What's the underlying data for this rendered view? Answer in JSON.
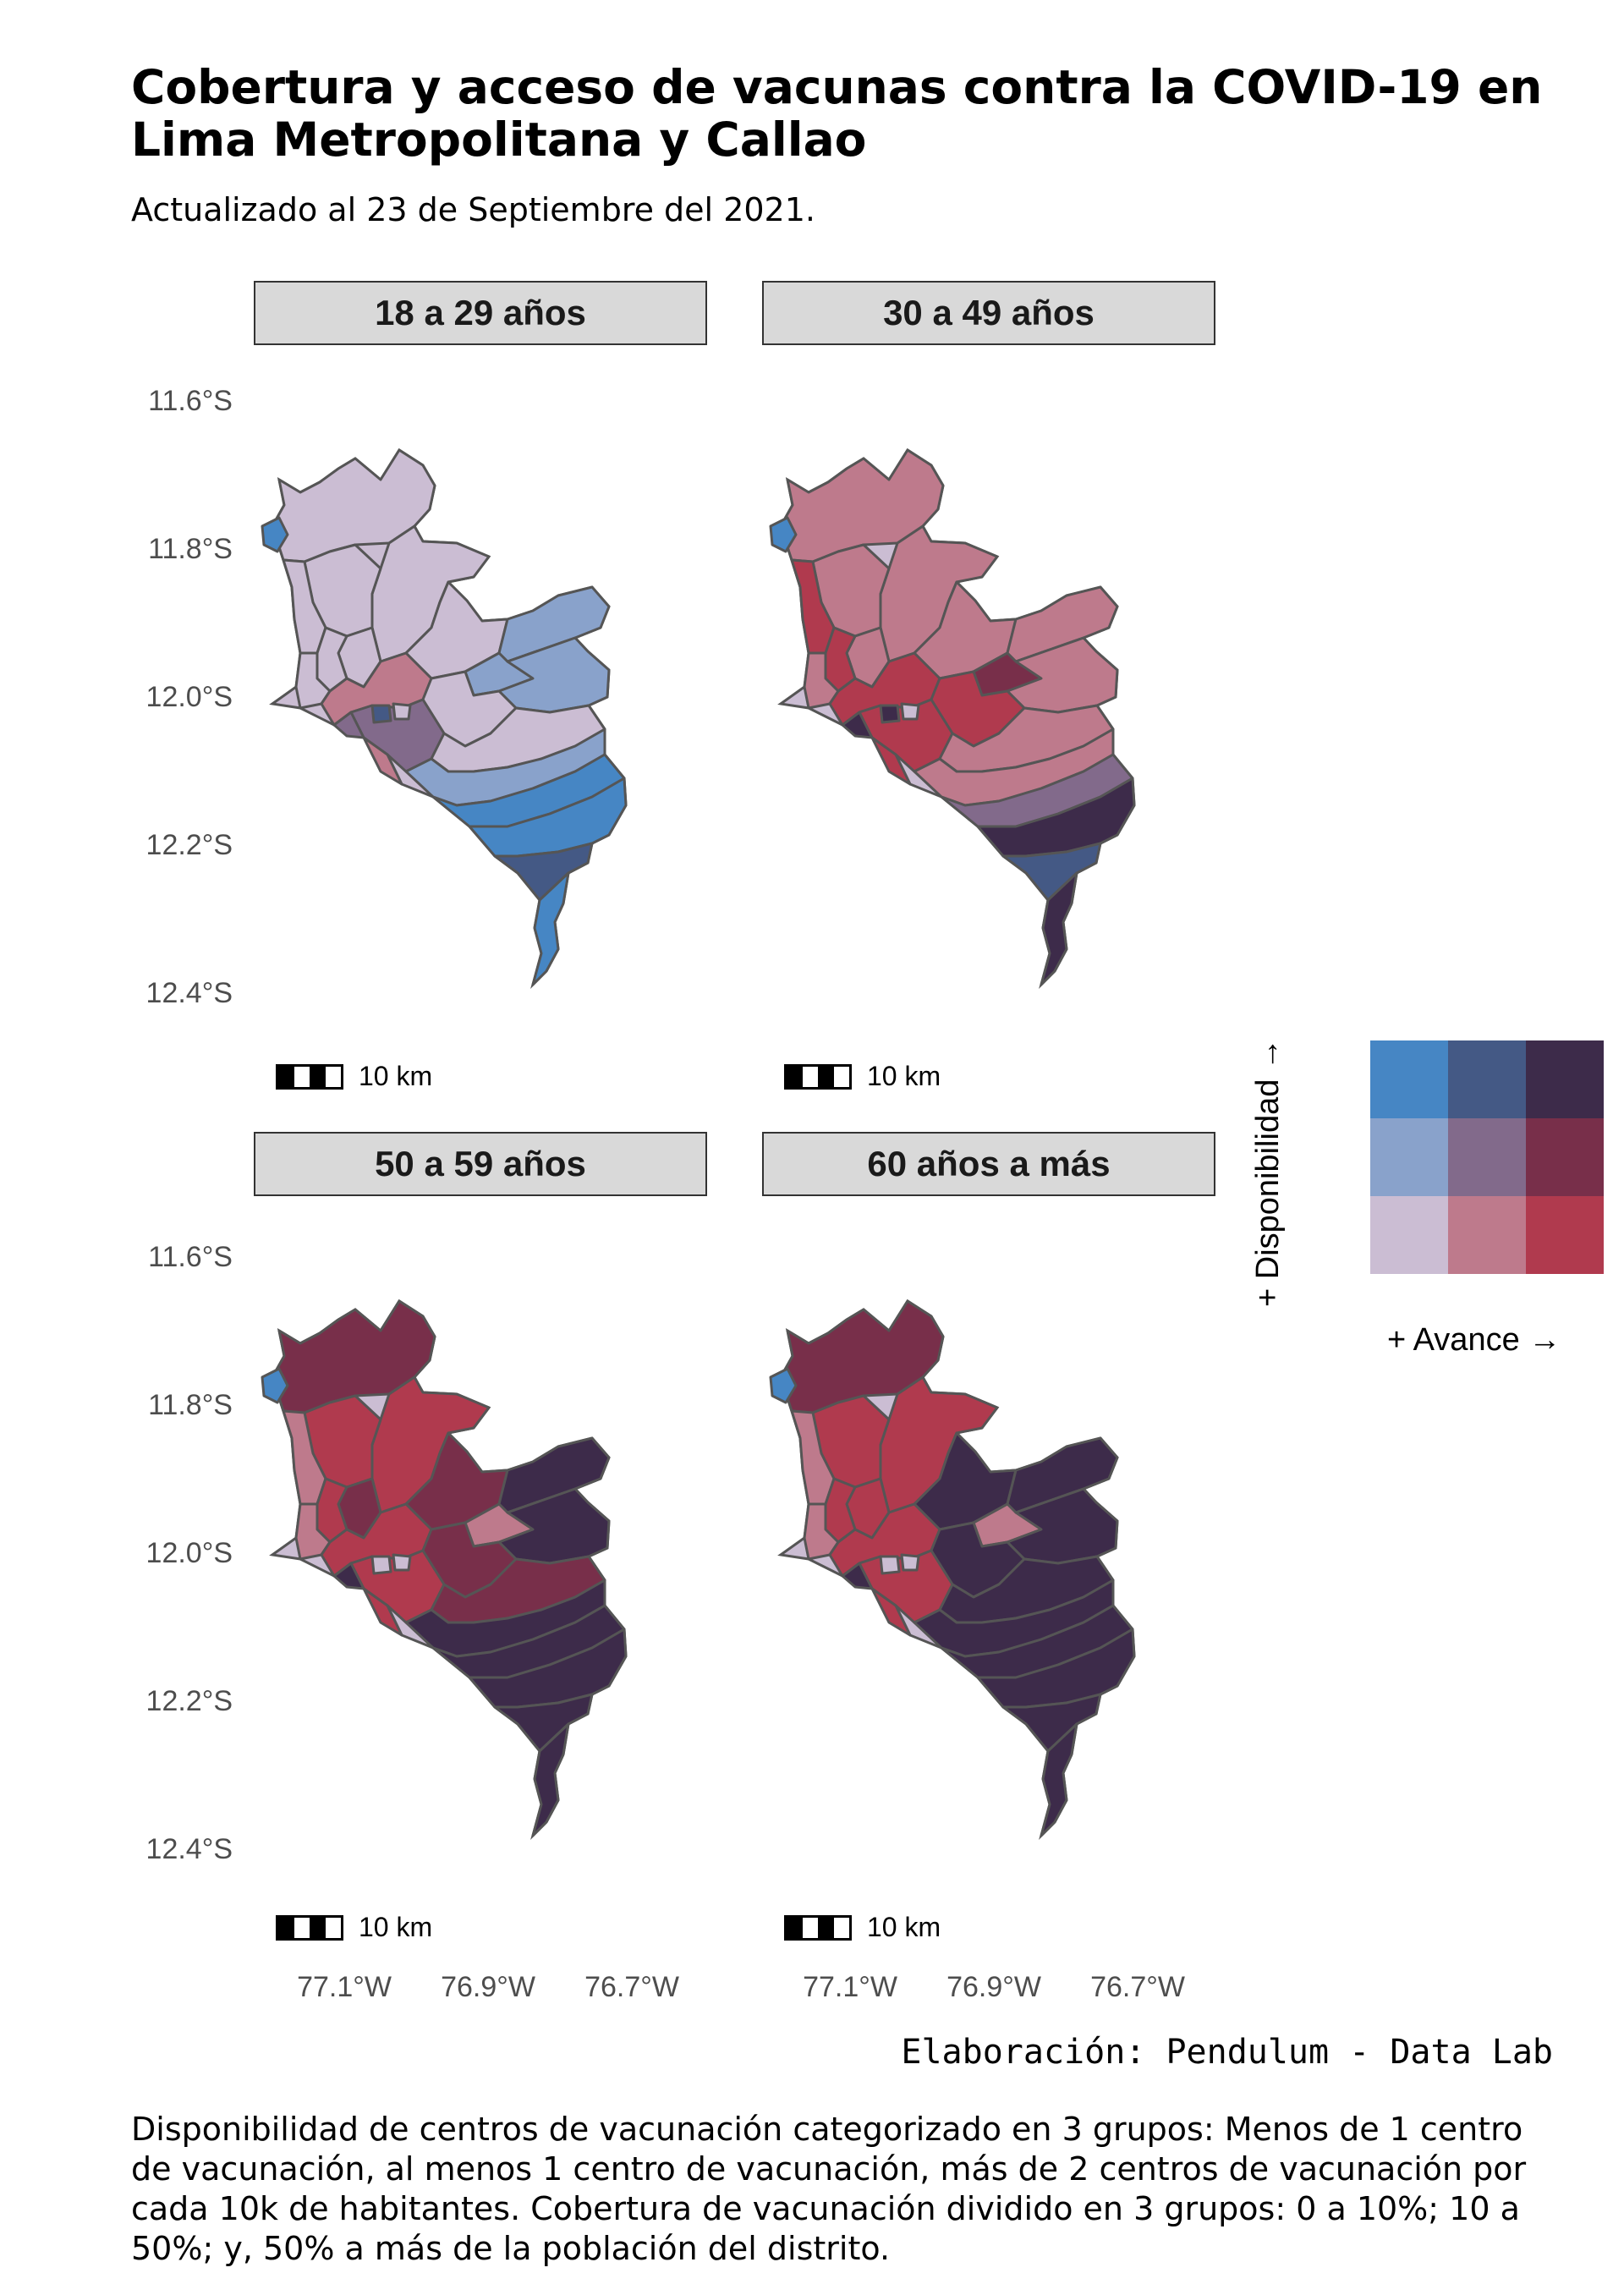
{
  "title": "Cobertura y acceso de vacunas contra la COVID-19 en Lima Metropolitana y Callao",
  "subtitle": "Actualizado al 23 de Septiembre del 2021.",
  "panels": [
    {
      "label": "18 a 29 años",
      "scale": "10 km",
      "palette_key": "p1"
    },
    {
      "label": "30 a 49 años",
      "scale": "10 km",
      "palette_key": "p2"
    },
    {
      "label": "50 a 59 años",
      "scale": "10 km",
      "palette_key": "p3"
    },
    {
      "label": "60 años a más",
      "scale": "10 km",
      "palette_key": "p4"
    }
  ],
  "y_ticks": [
    "11.6°S",
    "11.8°S",
    "12.0°S",
    "12.2°S",
    "12.4°S"
  ],
  "x_ticks": [
    "77.1°W",
    "76.9°W",
    "76.7°W"
  ],
  "legend": {
    "y_label": "+ Disponibilidad  →",
    "x_label": "+ Avance  →",
    "colors": [
      [
        "#4686c4",
        "#445985",
        "#3d2b4a"
      ],
      [
        "#89a2cb",
        "#826a8b",
        "#782f4a"
      ],
      [
        "#cbbdd3",
        "#be7a8c",
        "#b03a4e"
      ]
    ]
  },
  "credit": "Elaboración: Pendulum - Data Lab",
  "caption": "Disponibilidad de centros de vacunación categorizado en 3 grupos: Menos de 1 centro de vacunación, al menos 1 centro de vacunación, más de 2 centros de vacunación por cada 10k de habitantes. Cobertura de vacunación dividido en 3 grupos: 0 a 10%; 10 a 50%; y, 50% a más de la población del distrito."
}
